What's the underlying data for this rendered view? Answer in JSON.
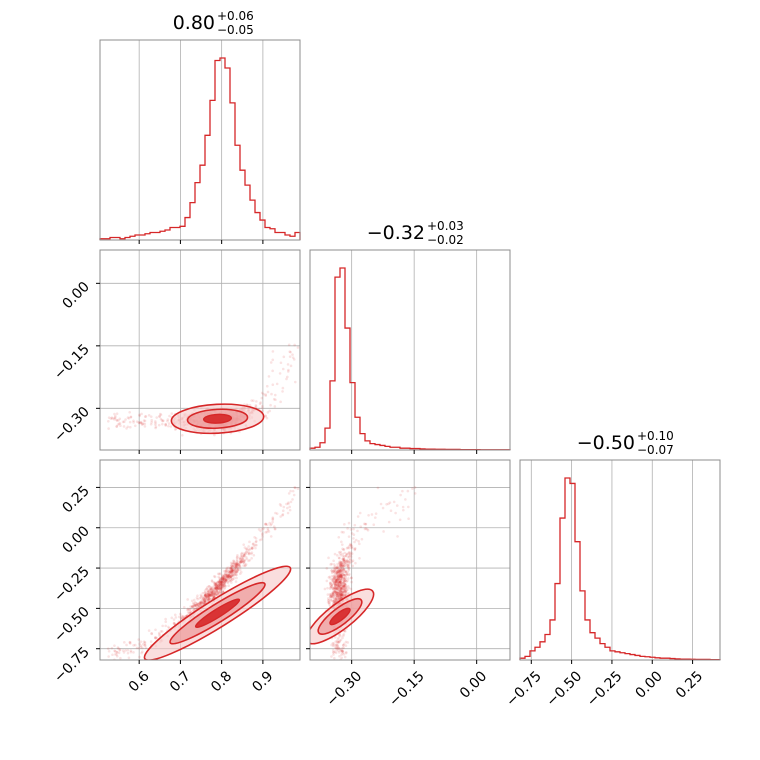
{
  "chart_data": {
    "type": "corner",
    "color": "#d62728",
    "parameters": [
      {
        "range": [
          0.505,
          0.99
        ],
        "ticks": [
          0.6,
          0.7,
          0.8,
          0.9
        ],
        "tick_labels": [
          "0.6",
          "0.7",
          "0.8",
          "0.9"
        ],
        "title": {
          "median": "0.80",
          "upper": "+0.06",
          "lower": "−0.05"
        }
      },
      {
        "range": [
          -0.4,
          0.08
        ],
        "ticks": [
          -0.3,
          -0.15,
          0.0
        ],
        "tick_labels": [
          "−0.30",
          "−0.15",
          "0.00"
        ],
        "title": {
          "median": "−0.32",
          "upper": "+0.03",
          "lower": "−0.02"
        }
      },
      {
        "range": [
          -0.82,
          0.42
        ],
        "ticks": [
          -0.75,
          -0.5,
          -0.25,
          0.0,
          0.25
        ],
        "tick_labels": [
          "−0.75",
          "−0.50",
          "−0.25",
          "0.00",
          "0.25"
        ],
        "title": {
          "median": "−0.50",
          "upper": "+0.10",
          "lower": "−0.07"
        }
      }
    ],
    "histograms": [
      [
        0.5,
        0.5,
        1,
        1,
        0.5,
        1,
        1.5,
        2,
        2,
        2.5,
        3,
        3,
        3.5,
        4,
        5,
        5,
        5.5,
        9,
        15,
        23,
        30,
        42,
        56,
        72,
        73,
        69,
        55,
        38,
        28,
        22,
        16,
        11,
        8,
        5,
        4.5,
        3,
        3,
        2,
        1.5,
        3
      ],
      [
        1,
        1.5,
        4,
        12,
        38,
        95,
        100,
        67,
        37,
        18,
        9,
        5,
        3.5,
        3,
        2.5,
        2,
        1.5,
        1.5,
        1,
        1,
        0.8,
        0.8,
        0.6,
        0.5,
        0.5,
        0.4,
        0.4,
        0.3,
        0.3,
        0.3,
        0.2,
        0.2,
        0.2,
        0.2,
        0.1,
        0.1,
        0.1,
        0.1,
        0.1,
        0.1
      ],
      [
        1,
        2,
        5,
        7,
        10,
        14,
        22,
        42,
        78,
        100,
        97,
        65,
        38,
        22,
        15,
        12,
        9,
        7,
        5,
        4.5,
        4,
        3.5,
        3,
        2.5,
        2,
        1.8,
        1.5,
        1.2,
        1,
        1,
        0.8,
        0.6,
        0.5,
        0.5,
        0.4,
        0.3,
        0.3,
        0.3,
        0.2,
        0.2
      ]
    ],
    "contour_levels": {
      "p1_p2": {
        "center": [
          0.79,
          -0.325
        ],
        "spread": [
          0.035,
          0.015
        ],
        "slope": 0.05
      },
      "p1_p3": {
        "center": [
          0.79,
          -0.53
        ],
        "spread": [
          0.04,
          0.035
        ],
        "slope": 1.6
      },
      "p2_p3": {
        "center": [
          -0.328,
          -0.55
        ],
        "spread": [
          0.012,
          0.08
        ],
        "slope": 2.0
      }
    },
    "grid": true,
    "sample_points": 900
  }
}
